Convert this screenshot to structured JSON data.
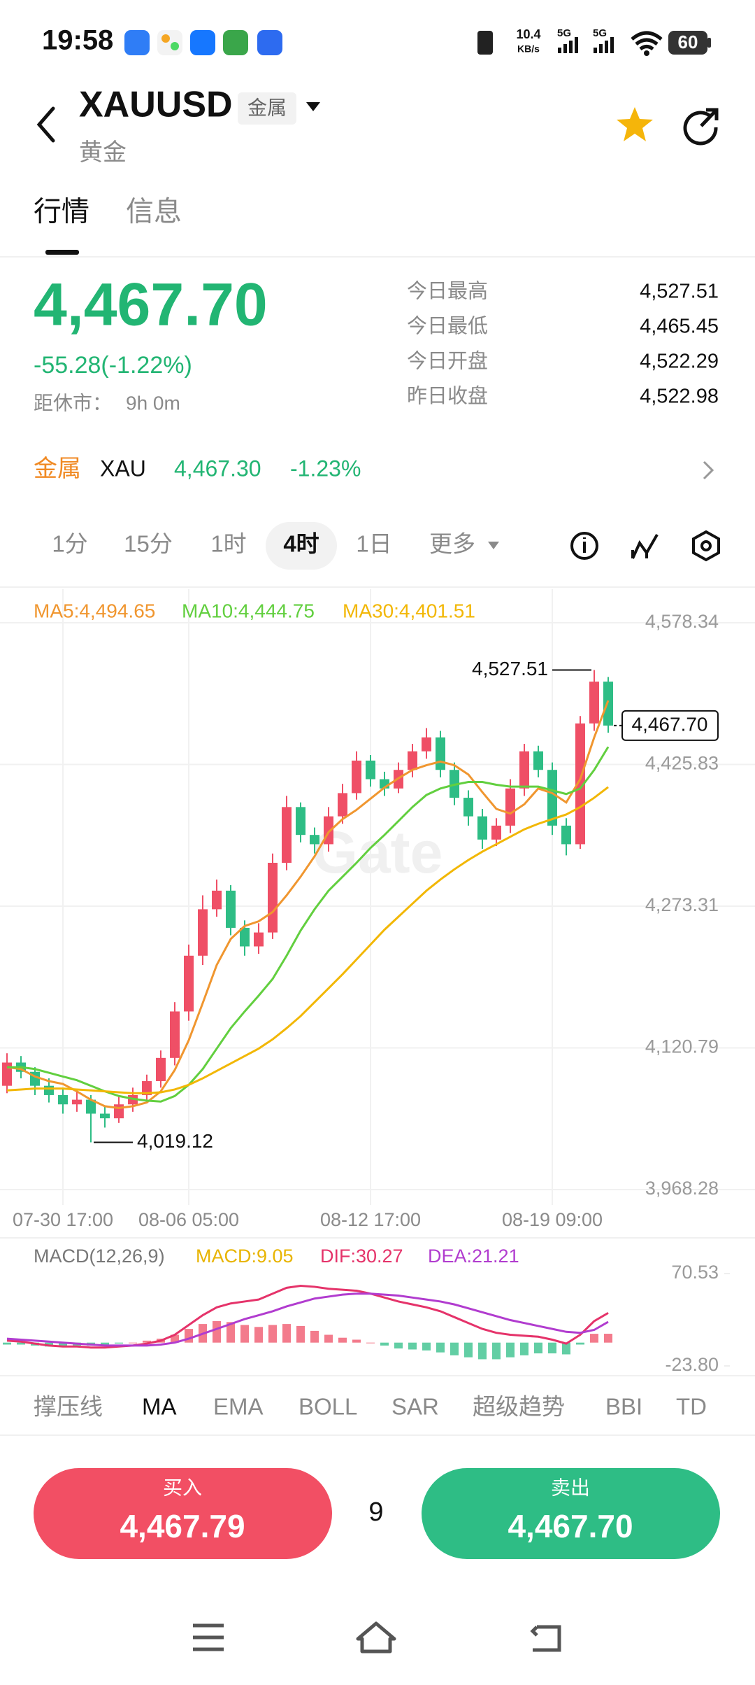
{
  "status_bar": {
    "time": "19:58",
    "net_speed": "10.4",
    "net_unit": "KB/s",
    "sim1": "5G",
    "sim2": "5G",
    "battery": "60"
  },
  "header": {
    "symbol": "XAUUSD",
    "badge": "金属",
    "name": "黄金"
  },
  "tabs": [
    "行情",
    "信息"
  ],
  "quote": {
    "price": "4,467.70",
    "change": "-55.28(-1.22%)",
    "close_label": "距休市：",
    "close_time": "9h 0m",
    "stats": [
      [
        "今日最高",
        "4,527.51"
      ],
      [
        "今日最低",
        "4,465.45"
      ],
      [
        "今日开盘",
        "4,522.29"
      ],
      [
        "昨日收盘",
        "4,522.98"
      ]
    ]
  },
  "related": {
    "category": "金属",
    "symbol": "XAU",
    "price": "4,467.30",
    "change": "-1.23%"
  },
  "intervals": [
    "1分",
    "15分",
    "1时",
    "4时",
    "1日",
    "更多"
  ],
  "chart_data": [
    {
      "type": "candlestick",
      "watermark": "Gate",
      "categories": [
        null,
        null,
        null,
        null,
        "07-30 17:00",
        null,
        null,
        null,
        null,
        null,
        null,
        null,
        null,
        "08-06 05:00",
        null,
        null,
        null,
        null,
        null,
        null,
        null,
        null,
        null,
        null,
        null,
        null,
        "08-12 17:00",
        null,
        null,
        null,
        null,
        null,
        null,
        null,
        null,
        null,
        null,
        null,
        null,
        "08-19 09:00",
        null,
        null,
        null,
        null
      ],
      "open": [
        4080,
        4105,
        4095,
        4080,
        4070,
        4060,
        4065,
        4050,
        4045,
        4060,
        4070,
        4085,
        4110,
        4160,
        4220,
        4270,
        4290,
        4250,
        4230,
        4245,
        4320,
        4380,
        4350,
        4340,
        4370,
        4395,
        4430,
        4410,
        4400,
        4420,
        4440,
        4455,
        4420,
        4390,
        4370,
        4345,
        4360,
        4400,
        4440,
        4420,
        4360,
        4340,
        4470,
        4515
      ],
      "high": [
        4115,
        4112,
        4100,
        4088,
        4078,
        4075,
        4070,
        4058,
        4068,
        4078,
        4092,
        4118,
        4170,
        4232,
        4285,
        4302,
        4296,
        4258,
        4255,
        4330,
        4392,
        4385,
        4358,
        4380,
        4405,
        4440,
        4436,
        4418,
        4428,
        4448,
        4465,
        4462,
        4428,
        4398,
        4378,
        4368,
        4410,
        4448,
        4446,
        4428,
        4368,
        4478,
        4527.51,
        4520
      ],
      "low": [
        4072,
        4088,
        4070,
        4062,
        4050,
        4052,
        4019.12,
        4035,
        4040,
        4052,
        4062,
        4078,
        4102,
        4150,
        4210,
        4262,
        4242,
        4220,
        4222,
        4238,
        4312,
        4342,
        4330,
        4332,
        4362,
        4388,
        4402,
        4392,
        4395,
        4412,
        4432,
        4412,
        4382,
        4360,
        4335,
        4338,
        4352,
        4392,
        4412,
        4350,
        4328,
        4335,
        4462,
        4460
      ],
      "close": [
        4105,
        4095,
        4080,
        4070,
        4060,
        4065,
        4050,
        4045,
        4060,
        4070,
        4085,
        4110,
        4160,
        4220,
        4270,
        4290,
        4250,
        4230,
        4245,
        4320,
        4380,
        4350,
        4340,
        4370,
        4395,
        4430,
        4410,
        4400,
        4420,
        4440,
        4455,
        4420,
        4390,
        4370,
        4345,
        4360,
        4400,
        4440,
        4420,
        4360,
        4340,
        4470,
        4515,
        4467.7
      ],
      "up_color": "#ef4f66",
      "down_color": "#2ebd85",
      "high_label": "4,527.51",
      "low_label": "4,019.12",
      "last_label": "4,467.70",
      "series": [
        {
          "name": "MA5:4,494.65",
          "color": "#f0962f",
          "values": [
            4100,
            4098,
            4090,
            4085,
            4082,
            4074,
            4065,
            4058,
            4056,
            4058,
            4062,
            4074,
            4097,
            4129,
            4169,
            4210,
            4238,
            4252,
            4257,
            4267,
            4285,
            4305,
            4327,
            4353,
            4367,
            4377,
            4389,
            4401,
            4411,
            4420,
            4425,
            4429,
            4425,
            4415,
            4396,
            4378,
            4373,
            4383,
            4400,
            4395,
            4385,
            4410,
            4455,
            4494.65
          ]
        },
        {
          "name": "MA10:4,444.75",
          "color": "#62cf3f",
          "values": [
            4100,
            4100,
            4098,
            4094,
            4090,
            4086,
            4080,
            4074,
            4069,
            4066,
            4064,
            4063,
            4069,
            4081,
            4098,
            4120,
            4142,
            4160,
            4177,
            4195,
            4220,
            4247,
            4270,
            4290,
            4305,
            4320,
            4336,
            4350,
            4365,
            4380,
            4393,
            4400,
            4404,
            4407,
            4407,
            4404,
            4402,
            4402,
            4402,
            4398,
            4394,
            4400,
            4420,
            4444.75
          ]
        },
        {
          "name": "MA30:4,401.51",
          "color": "#f2b705",
          "values": [
            4075,
            4076,
            4077,
            4077,
            4077,
            4076,
            4075,
            4074,
            4073,
            4072,
            4072,
            4073,
            4076,
            4081,
            4088,
            4096,
            4104,
            4112,
            4120,
            4130,
            4142,
            4155,
            4170,
            4185,
            4200,
            4216,
            4232,
            4248,
            4262,
            4276,
            4290,
            4302,
            4313,
            4323,
            4332,
            4340,
            4348,
            4356,
            4362,
            4367,
            4372,
            4380,
            4390,
            4401.51
          ]
        }
      ],
      "ylim": [
        3968.28,
        4578.34
      ],
      "yticks": [
        {
          "value": 4578.34,
          "label": "4,578.34"
        },
        {
          "value": 4425.83,
          "label": "4,425.83"
        },
        {
          "value": 4273.31,
          "label": "4,273.31"
        },
        {
          "value": 4120.79,
          "label": "4,120.79"
        },
        {
          "value": 3968.28,
          "label": "3,968.28"
        }
      ],
      "grid": true
    },
    {
      "type": "macd",
      "title": "MACD(12,26,9)",
      "up_color": "#ef4f66",
      "down_color": "#2ebd85",
      "series": [
        {
          "name": "MACD:9.05",
          "type": "bar",
          "color": "#e8b400",
          "values": [
            -2,
            -2,
            -3,
            -4,
            -4,
            -3,
            -3,
            -2,
            -1,
            0,
            2,
            4,
            8,
            14,
            19,
            22,
            21,
            18,
            16,
            18,
            19,
            17,
            12,
            8,
            5,
            3,
            0,
            -3,
            -6,
            -7,
            -8,
            -10,
            -13,
            -15,
            -17,
            -17,
            -15,
            -13,
            -11,
            -11,
            -12,
            -2,
            9,
            9.05
          ]
        },
        {
          "name": "DIF:30.27",
          "type": "line",
          "color": "#e5336a",
          "values": [
            2,
            1,
            -1,
            -3,
            -4,
            -4,
            -5,
            -5,
            -4,
            -3,
            -1,
            2,
            8,
            18,
            28,
            36,
            40,
            42,
            44,
            50,
            56,
            58,
            57,
            55,
            54,
            53,
            50,
            46,
            42,
            39,
            36,
            32,
            26,
            20,
            14,
            10,
            8,
            7,
            6,
            3,
            -1,
            8,
            22,
            30.27
          ]
        },
        {
          "name": "DEA:21.21",
          "type": "line",
          "color": "#b13ccf",
          "values": [
            4,
            3,
            2,
            1,
            0,
            -1,
            -2,
            -3,
            -3,
            -3,
            -3,
            -2,
            0,
            4,
            9,
            14,
            19,
            24,
            28,
            32,
            37,
            41,
            45,
            47,
            49,
            50,
            50,
            49,
            48,
            46,
            44,
            42,
            39,
            35,
            31,
            27,
            23,
            20,
            17,
            14,
            11,
            10,
            13,
            21.21
          ]
        }
      ],
      "ylim": [
        -23.8,
        70.53
      ],
      "yticks": [
        70.53,
        {
          "value": -23.8,
          "label": "-23.80"
        }
      ]
    }
  ],
  "indicators": [
    "撑压线",
    "MA",
    "EMA",
    "BOLL",
    "SAR",
    "超级趋势",
    "BBI",
    "TD"
  ],
  "trade": {
    "buy_label": "买入",
    "buy_price": "4,467.79",
    "quantity": "9",
    "sell_label": "卖出",
    "sell_price": "4,467.70"
  }
}
